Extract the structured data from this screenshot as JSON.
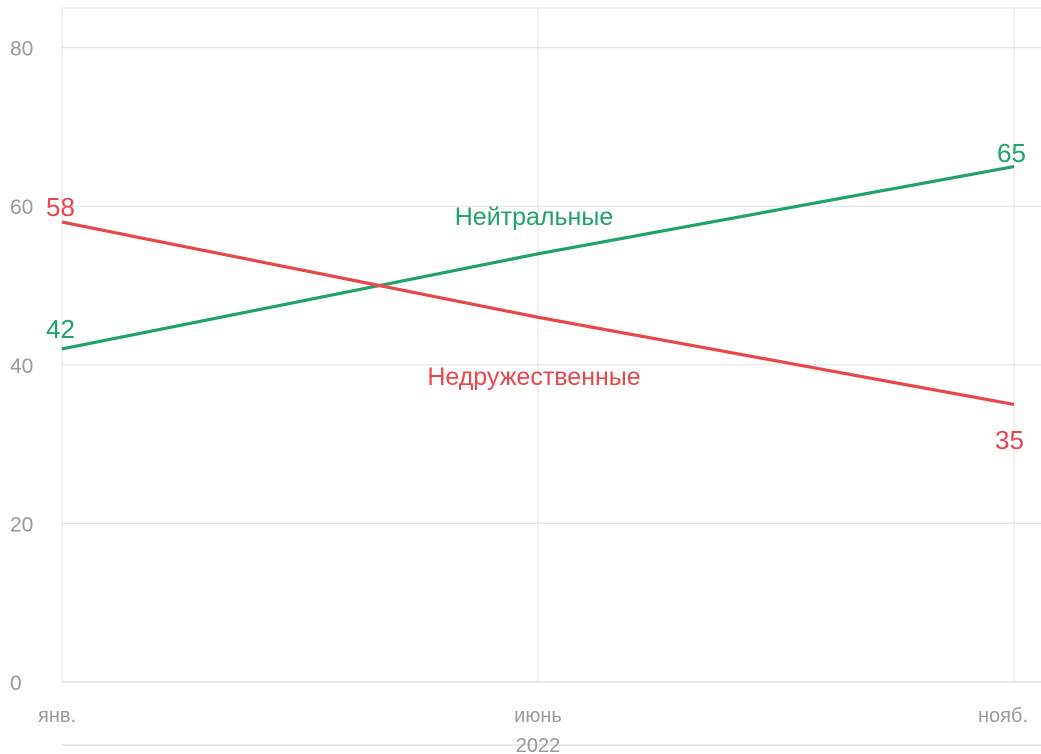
{
  "chart_data": {
    "type": "line",
    "x": [
      "янв.",
      "июнь",
      "нояб."
    ],
    "year_label": "2022",
    "ylim": [
      0,
      85
    ],
    "yticks": [
      0,
      20,
      40,
      60,
      80
    ],
    "grid": true,
    "series": [
      {
        "name": "Нейтральные",
        "color": "#1fa36a",
        "values": [
          42,
          54,
          65
        ],
        "start_label": "42",
        "end_label": "65"
      },
      {
        "name": "Недружественные",
        "color": "#e8474c",
        "values": [
          58,
          46,
          35
        ],
        "start_label": "58",
        "end_label": "35"
      }
    ]
  }
}
